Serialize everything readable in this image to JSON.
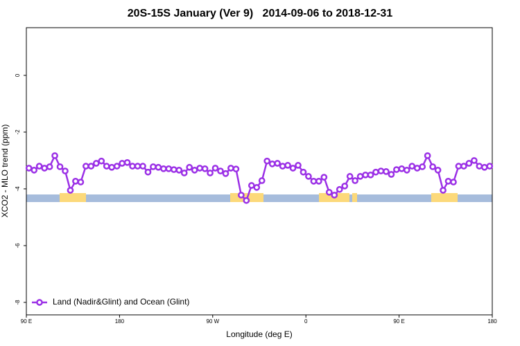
{
  "chart_data": {
    "type": "line",
    "title": "20S-15S January (Ver 9)   2014-09-06 to 2018-12-31",
    "xlabel": "Longitude (deg E)",
    "ylabel": "XCO2 - MLO trend (ppm)",
    "x": [
      92.5,
      97.5,
      102.5,
      107.5,
      112.5,
      117.5,
      122.5,
      127.5,
      132.5,
      137.5,
      142.5,
      147.5,
      152.5,
      157.5,
      162.5,
      167.5,
      172.5,
      177.5,
      182.5,
      187.5,
      192.5,
      197.5,
      202.5,
      207.5,
      212.5,
      217.5,
      222.5,
      227.5,
      232.5,
      237.5,
      242.5,
      247.5,
      252.5,
      257.5,
      262.5,
      267.5,
      272.5,
      277.5,
      282.5,
      287.5,
      292.5,
      297.5,
      302.5,
      307.5,
      312.5,
      317.5,
      322.5,
      327.5,
      332.5,
      337.5,
      342.5,
      347.5,
      352.5,
      357.5,
      362.5,
      367.5,
      372.5,
      377.5,
      382.5,
      387.5,
      392.5,
      397.5,
      402.5,
      407.5,
      412.5,
      417.5,
      422.5,
      427.5,
      432.5,
      437.5,
      442.5,
      447.5,
      452.5,
      457.5,
      462.5,
      467.5,
      472.5,
      477.5,
      482.5,
      487.5,
      492.5,
      497.5,
      502.5,
      507.5,
      512.5,
      517.5,
      522.5,
      527.5,
      532.5,
      537.5
    ],
    "series": [
      {
        "name": "Land (Nadir&Glint) and Ocean (Glint)",
        "color": "#9b30e6",
        "values": [
          -3.27,
          -3.34,
          -3.2,
          -3.27,
          -3.22,
          -2.83,
          -3.22,
          -3.37,
          -4.05,
          -3.73,
          -3.76,
          -3.2,
          -3.2,
          -3.1,
          -3.02,
          -3.2,
          -3.24,
          -3.2,
          -3.1,
          -3.07,
          -3.2,
          -3.2,
          -3.2,
          -3.41,
          -3.22,
          -3.24,
          -3.29,
          -3.29,
          -3.32,
          -3.34,
          -3.44,
          -3.24,
          -3.34,
          -3.27,
          -3.29,
          -3.44,
          -3.27,
          -3.37,
          -3.46,
          -3.27,
          -3.3,
          -4.22,
          -4.41,
          -3.88,
          -3.95,
          -3.71,
          -3.02,
          -3.12,
          -3.1,
          -3.2,
          -3.17,
          -3.27,
          -3.17,
          -3.41,
          -3.56,
          -3.73,
          -3.73,
          -3.59,
          -4.12,
          -4.22,
          -4.02,
          -3.9,
          -3.56,
          -3.71,
          -3.56,
          -3.51,
          -3.51,
          -3.41,
          -3.37,
          -3.39,
          -3.49,
          -3.32,
          -3.29,
          -3.34,
          -3.2,
          -3.27,
          -3.22,
          -2.83,
          -3.22,
          -3.34,
          -4.05,
          -3.73,
          -3.76,
          -3.2,
          -3.2,
          -3.1,
          -3.0,
          -3.2,
          -3.24,
          -3.2
        ]
      }
    ],
    "xlim": [
      90,
      540
    ],
    "xticks": [
      {
        "value": 90,
        "label": "90 E"
      },
      {
        "value": 180,
        "label": "180"
      },
      {
        "value": 270,
        "label": "90 W"
      },
      {
        "value": 360,
        "label": "0"
      },
      {
        "value": 450,
        "label": "90 E"
      },
      {
        "value": 540,
        "label": "180"
      }
    ],
    "ylim": [
      -8.44,
      1.68
    ],
    "yticks": [
      0,
      -2,
      -4,
      -6,
      -8
    ],
    "legend": "bottom-left"
  }
}
